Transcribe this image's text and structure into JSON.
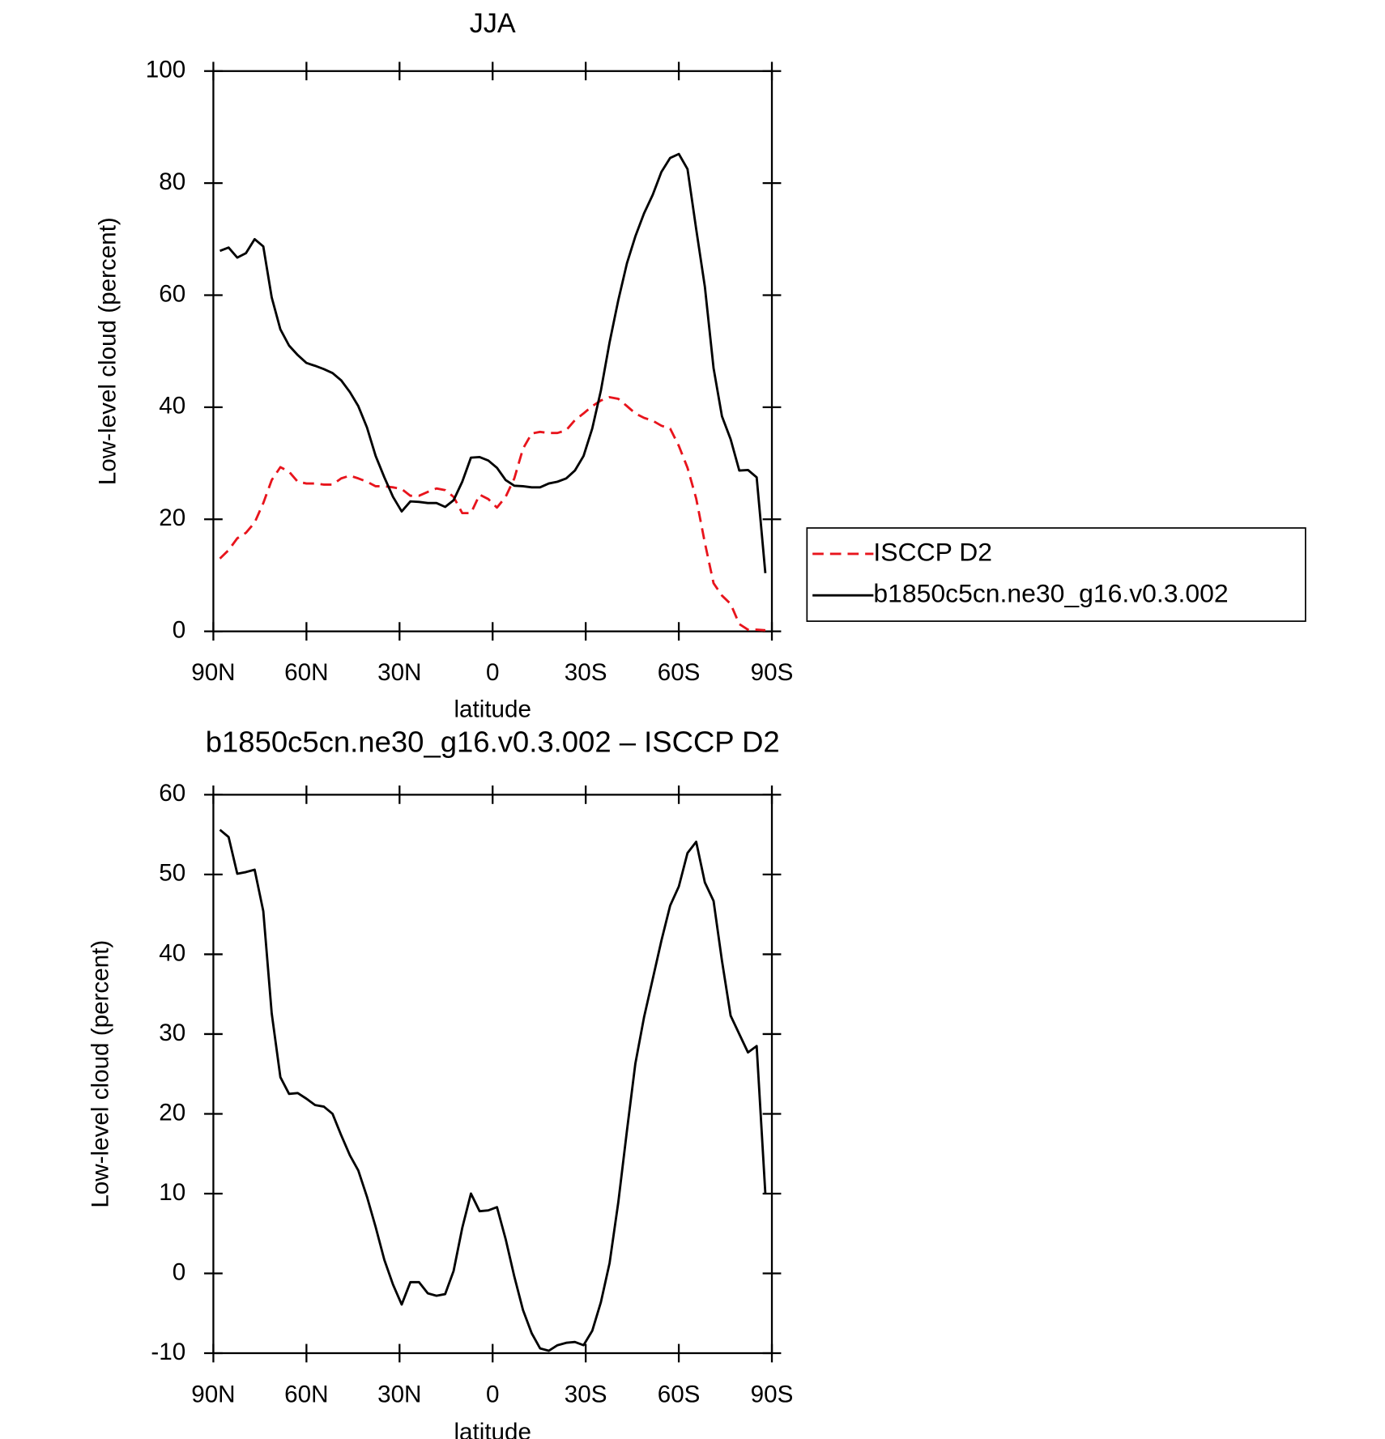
{
  "chart_data": [
    {
      "type": "line",
      "title": "JJA",
      "xlabel": "latitude",
      "ylabel": "Low-level cloud (percent)",
      "x": [
        87.9,
        85.1,
        82.3,
        79.5,
        76.7,
        73.9,
        71.2,
        68.4,
        65.6,
        62.8,
        60.0,
        57.2,
        54.4,
        51.6,
        48.8,
        46.0,
        43.3,
        40.5,
        37.7,
        34.9,
        32.1,
        29.3,
        26.5,
        23.7,
        20.9,
        18.1,
        15.3,
        12.6,
        9.8,
        7.0,
        4.2,
        1.4,
        -1.4,
        -4.2,
        -7.0,
        -9.8,
        -12.6,
        -15.3,
        -18.1,
        -20.9,
        -23.7,
        -26.5,
        -29.3,
        -32.1,
        -34.9,
        -37.7,
        -40.5,
        -43.3,
        -46.0,
        -48.8,
        -51.6,
        -54.4,
        -57.2,
        -60.0,
        -62.8,
        -65.6,
        -68.4,
        -71.2,
        -73.9,
        -76.7,
        -79.5,
        -82.3,
        -85.1,
        -87.9
      ],
      "series": [
        {
          "name": "ISCCP D2",
          "color": "#e8141c",
          "dash": true,
          "values": [
            13,
            14.5,
            16.6,
            17.6,
            19.4,
            22.9,
            27,
            29.3,
            28.5,
            26.7,
            26.4,
            26.4,
            26.2,
            26.2,
            27.3,
            27.8,
            27.3,
            26.7,
            25.9,
            25.9,
            25.7,
            25.4,
            24.2,
            24.2,
            24.9,
            25.5,
            25.2,
            24,
            21.1,
            21.1,
            24.4,
            23.6,
            22.1,
            24,
            27.3,
            32.6,
            35.3,
            35.6,
            35.4,
            35.4,
            35.9,
            37.7,
            38.9,
            40.2,
            41.2,
            41.8,
            41.5,
            40.2,
            38.9,
            38.1,
            37.6,
            36.7,
            36.2,
            33.1,
            29.2,
            23.7,
            15.8,
            8.6,
            6.4,
            4.9,
            1.3,
            0.3,
            0.3,
            0.2
          ]
        },
        {
          "name": "b1850c5cn.ne30_g16.v0.3.002",
          "color": "#000000",
          "dash": false,
          "values": [
            67.9,
            68.5,
            66.7,
            67.5,
            70,
            68.7,
            59.6,
            53.9,
            51,
            49.3,
            47.9,
            47.4,
            46.8,
            46.1,
            44.8,
            42.7,
            40.2,
            36.4,
            31.3,
            27.5,
            24,
            21.4,
            23.2,
            23.1,
            22.9,
            22.9,
            22.2,
            23.4,
            26.7,
            31,
            31.1,
            30.5,
            29.2,
            27,
            26,
            25.9,
            25.7,
            25.7,
            26.4,
            26.7,
            27.3,
            28.7,
            31.3,
            36.2,
            43,
            51.6,
            59.1,
            65.7,
            70.5,
            74.6,
            77.9,
            82,
            84.5,
            85.2,
            82.5,
            71.8,
            61.5,
            47,
            38.4,
            34.3,
            28.7,
            28.8,
            27.5,
            10.4
          ]
        }
      ],
      "xlim": [
        90,
        -90
      ],
      "xticks": [
        {
          "value": 90,
          "label": "90N"
        },
        {
          "value": 60,
          "label": "60N"
        },
        {
          "value": 30,
          "label": "30N"
        },
        0,
        {
          "value": -30,
          "label": "30S"
        },
        {
          "value": -60,
          "label": "60S"
        },
        {
          "value": -90,
          "label": "90S"
        }
      ],
      "ylim": [
        0,
        100
      ],
      "yticks": [
        0,
        20,
        40,
        60,
        80,
        100
      ],
      "legend": "right"
    },
    {
      "type": "line",
      "title": "b1850c5cn.ne30_g16.v0.3.002 – ISCCP D2",
      "xlabel": "latitude",
      "ylabel": "Low-level cloud (percent)",
      "x": [
        87.9,
        85.1,
        82.3,
        79.5,
        76.7,
        73.9,
        71.2,
        68.4,
        65.6,
        62.8,
        60.0,
        57.2,
        54.4,
        51.6,
        48.8,
        46.0,
        43.3,
        40.5,
        37.7,
        34.9,
        32.1,
        29.3,
        26.5,
        23.7,
        20.9,
        18.1,
        15.3,
        12.6,
        9.8,
        7.0,
        4.2,
        1.4,
        -1.4,
        -4.2,
        -7.0,
        -9.8,
        -12.6,
        -15.3,
        -18.1,
        -20.9,
        -23.7,
        -26.5,
        -29.3,
        -32.1,
        -34.9,
        -37.7,
        -40.5,
        -43.3,
        -46.0,
        -48.8,
        -51.6,
        -54.4,
        -57.2,
        -60.0,
        -62.8,
        -65.6,
        -68.4,
        -71.2,
        -73.9,
        -76.7,
        -79.5,
        -82.3,
        -85.1,
        -87.9
      ],
      "series": [
        {
          "color": "#000000",
          "dash": false,
          "values": [
            55.6,
            54.7,
            50.1,
            50.3,
            50.6,
            45.4,
            32.6,
            24.6,
            22.5,
            22.6,
            21.9,
            21.1,
            20.9,
            20,
            17.3,
            14.8,
            12.9,
            9.6,
            5.8,
            1.7,
            -1.4,
            -3.9,
            -1.1,
            -1.1,
            -2.5,
            -2.8,
            -2.6,
            0.3,
            5.7,
            10,
            7.8,
            7.9,
            8.3,
            4.3,
            -0.4,
            -4.6,
            -7.5,
            -9.4,
            -9.7,
            -9,
            -8.7,
            -8.6,
            -9,
            -7.2,
            -3.6,
            1.3,
            8.9,
            17.9,
            26.3,
            32.1,
            36.9,
            41.7,
            46.1,
            48.5,
            52.7,
            54.1,
            49,
            46.7,
            39.2,
            32.3,
            30,
            27.7,
            28.5,
            10
          ]
        }
      ],
      "xlim": [
        90,
        -90
      ],
      "xticks": [
        {
          "value": 90,
          "label": "90N"
        },
        {
          "value": 60,
          "label": "60N"
        },
        {
          "value": 30,
          "label": "30N"
        },
        0,
        {
          "value": -30,
          "label": "30S"
        },
        {
          "value": -60,
          "label": "60S"
        },
        {
          "value": -90,
          "label": "90S"
        }
      ],
      "ylim": [
        -10,
        60
      ],
      "yticks": [
        -10,
        0,
        10,
        20,
        30,
        40,
        50,
        60
      ]
    }
  ]
}
